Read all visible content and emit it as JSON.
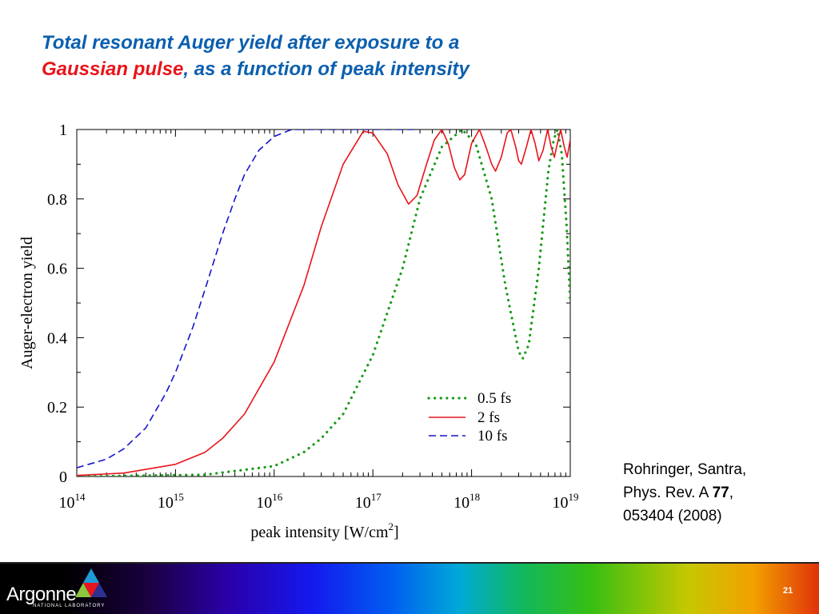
{
  "slide": {
    "title_line1": "Total resonant Auger yield after exposure to a",
    "title_accent": "Gaussian pulse",
    "title_rest": ", as a function of peak intensity"
  },
  "reference": {
    "line1": "Rohringer, Santra,",
    "line2_prefix": "Phys. Rev. A ",
    "line2_volume": "77",
    "line2_suffix": ",",
    "line3": "053404 (2008)"
  },
  "footer": {
    "logo_text": "Argonne",
    "logo_subtext": "NATIONAL LABORATORY",
    "page_number": "21"
  },
  "colors": {
    "title": "#0b5fae",
    "title_accent": "#e8141b",
    "series_0_5fs": "#1a9a1a",
    "series_2fs": "#e8141b",
    "series_10fs": "#1515cc"
  },
  "chart_data": {
    "type": "line",
    "xscale": "log",
    "xlabel_text": "peak intensity [W/cm",
    "xlabel_sup": "2",
    "xlabel_close": "]",
    "ylabel": "Auger-electron yield",
    "xlim": [
      100000000000000.0,
      1e+19
    ],
    "ylim": [
      0,
      1
    ],
    "x_ticks": [
      {
        "base": "10",
        "exp": "14"
      },
      {
        "base": "10",
        "exp": "15"
      },
      {
        "base": "10",
        "exp": "16"
      },
      {
        "base": "10",
        "exp": "17"
      },
      {
        "base": "10",
        "exp": "18"
      },
      {
        "base": "10",
        "exp": "19"
      }
    ],
    "y_ticks": [
      "0",
      "0.2",
      "0.4",
      "0.6",
      "0.8",
      "1"
    ],
    "legend_position": "bottom-right",
    "series": [
      {
        "name": "0.5 fs",
        "style": "dotted",
        "color": "#1a9a1a",
        "points": [
          [
            100000000000000.0,
            0.0
          ],
          [
            2000000000000000.0,
            0.005
          ],
          [
            1e+16,
            0.03
          ],
          [
            2e+16,
            0.07
          ],
          [
            3e+16,
            0.11
          ],
          [
            5e+16,
            0.18
          ],
          [
            1e+17,
            0.35
          ],
          [
            2e+17,
            0.6
          ],
          [
            3e+17,
            0.8
          ],
          [
            5e+17,
            0.95
          ],
          [
            8e+17,
            1.0
          ],
          [
            1.1e+18,
            0.96
          ],
          [
            1.6e+18,
            0.8
          ],
          [
            2.2e+18,
            0.55
          ],
          [
            3e+18,
            0.36
          ],
          [
            3.3e+18,
            0.34
          ],
          [
            3.8e+18,
            0.38
          ],
          [
            4.8e+18,
            0.6
          ],
          [
            6e+18,
            0.88
          ],
          [
            6.8e+18,
            0.97
          ],
          [
            7.4e+18,
            1.0
          ],
          [
            8.2e+18,
            0.93
          ],
          [
            9.2e+18,
            0.72
          ],
          [
            1e+19,
            0.5
          ]
        ]
      },
      {
        "name": "2 fs",
        "style": "solid",
        "color": "#e8141b",
        "points": [
          [
            100000000000000.0,
            0.003
          ],
          [
            300000000000000.0,
            0.01
          ],
          [
            1000000000000000.0,
            0.035
          ],
          [
            2000000000000000.0,
            0.07
          ],
          [
            3000000000000000.0,
            0.11
          ],
          [
            5000000000000000.0,
            0.18
          ],
          [
            1e+16,
            0.33
          ],
          [
            2e+16,
            0.55
          ],
          [
            3e+16,
            0.72
          ],
          [
            5e+16,
            0.9
          ],
          [
            8e+16,
            0.995
          ],
          [
            1e+17,
            0.99
          ],
          [
            1.4e+17,
            0.93
          ],
          [
            1.8e+17,
            0.84
          ],
          [
            2.3e+17,
            0.785
          ],
          [
            2.8e+17,
            0.81
          ],
          [
            3.5e+17,
            0.9
          ],
          [
            4.2e+17,
            0.97
          ],
          [
            5e+17,
            1.0
          ],
          [
            5.8e+17,
            0.96
          ],
          [
            6.7e+17,
            0.89
          ],
          [
            7.6e+17,
            0.855
          ],
          [
            8.5e+17,
            0.87
          ],
          [
            1e+18,
            0.96
          ],
          [
            1.2e+18,
            1.0
          ],
          [
            1.4e+18,
            0.95
          ],
          [
            1.6e+18,
            0.9
          ],
          [
            1.75e+18,
            0.88
          ],
          [
            2e+18,
            0.92
          ],
          [
            2.3e+18,
            0.99
          ],
          [
            2.5e+18,
            1.0
          ],
          [
            2.8e+18,
            0.95
          ],
          [
            3e+18,
            0.91
          ],
          [
            3.2e+18,
            0.9
          ],
          [
            3.6e+18,
            0.95
          ],
          [
            4e+18,
            1.0
          ],
          [
            4.4e+18,
            0.96
          ],
          [
            4.8e+18,
            0.91
          ],
          [
            5.3e+18,
            0.94
          ],
          [
            5.9e+18,
            1.0
          ],
          [
            6.4e+18,
            0.95
          ],
          [
            6.9e+18,
            0.92
          ],
          [
            7.4e+18,
            0.96
          ],
          [
            8e+18,
            1.0
          ],
          [
            8.7e+18,
            0.95
          ],
          [
            9.3e+18,
            0.92
          ],
          [
            1e+19,
            0.97
          ]
        ]
      },
      {
        "name": "10 fs",
        "style": "dashed",
        "color": "#1515cc",
        "points": [
          [
            100000000000000.0,
            0.025
          ],
          [
            200000000000000.0,
            0.05
          ],
          [
            300000000000000.0,
            0.08
          ],
          [
            500000000000000.0,
            0.14
          ],
          [
            800000000000000.0,
            0.24
          ],
          [
            1000000000000000.0,
            0.3
          ],
          [
            1500000000000000.0,
            0.43
          ],
          [
            2000000000000000.0,
            0.54
          ],
          [
            3000000000000000.0,
            0.7
          ],
          [
            4000000000000000.0,
            0.8
          ],
          [
            5000000000000000.0,
            0.87
          ],
          [
            7000000000000000.0,
            0.94
          ],
          [
            1e+16,
            0.98
          ],
          [
            1.5e+16,
            1.0
          ],
          [
            1e+17,
            1.0
          ],
          [
            3e+17,
            1.0
          ]
        ]
      }
    ]
  }
}
